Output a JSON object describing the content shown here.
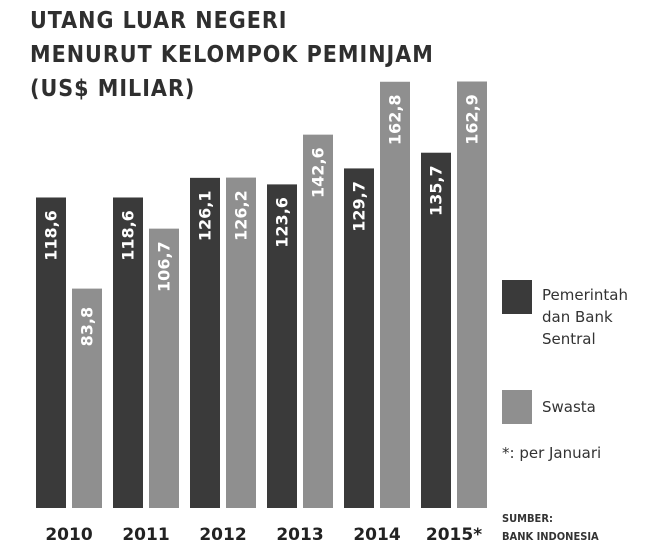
{
  "title_lines": [
    "UTANG LUAR NEGERI",
    "MENURUT KELOMPOK PEMINJAM",
    "(US$ MILIAR)"
  ],
  "colors": {
    "pemerintah": "#3a3a3a",
    "swasta": "#8f8f8f",
    "bar_label": "#ffffff",
    "axis_text": "#222222"
  },
  "chart_data": {
    "type": "bar",
    "title": "UTANG LUAR NEGERI MENURUT KELOMPOK PEMINJAM (US$ MILIAR)",
    "categories": [
      "2010",
      "2011",
      "2012",
      "2013",
      "2014",
      "2015*"
    ],
    "series": [
      {
        "name": "Pemerintah dan Bank Sentral",
        "values": [
          118.6,
          118.6,
          126.1,
          123.6,
          129.7,
          135.7
        ],
        "labels": [
          "118,6",
          "118,6",
          "126,1",
          "123,6",
          "129,7",
          "135,7"
        ]
      },
      {
        "name": "Swasta",
        "values": [
          83.8,
          106.7,
          126.2,
          142.6,
          162.8,
          162.9
        ],
        "labels": [
          "83,8",
          "106,7",
          "126,2",
          "142,6",
          "162,8",
          "162,9"
        ]
      }
    ],
    "ylim": [
      0,
      165
    ],
    "grid": false,
    "legend_position": "right"
  },
  "legend": {
    "pemerintah_label": "Pemerintah\ndan Bank\nSentral",
    "swasta_label": "Swasta"
  },
  "note": "*: per Januari",
  "source": {
    "line1": "SUMBER:",
    "line2": "BANK INDONESIA"
  }
}
